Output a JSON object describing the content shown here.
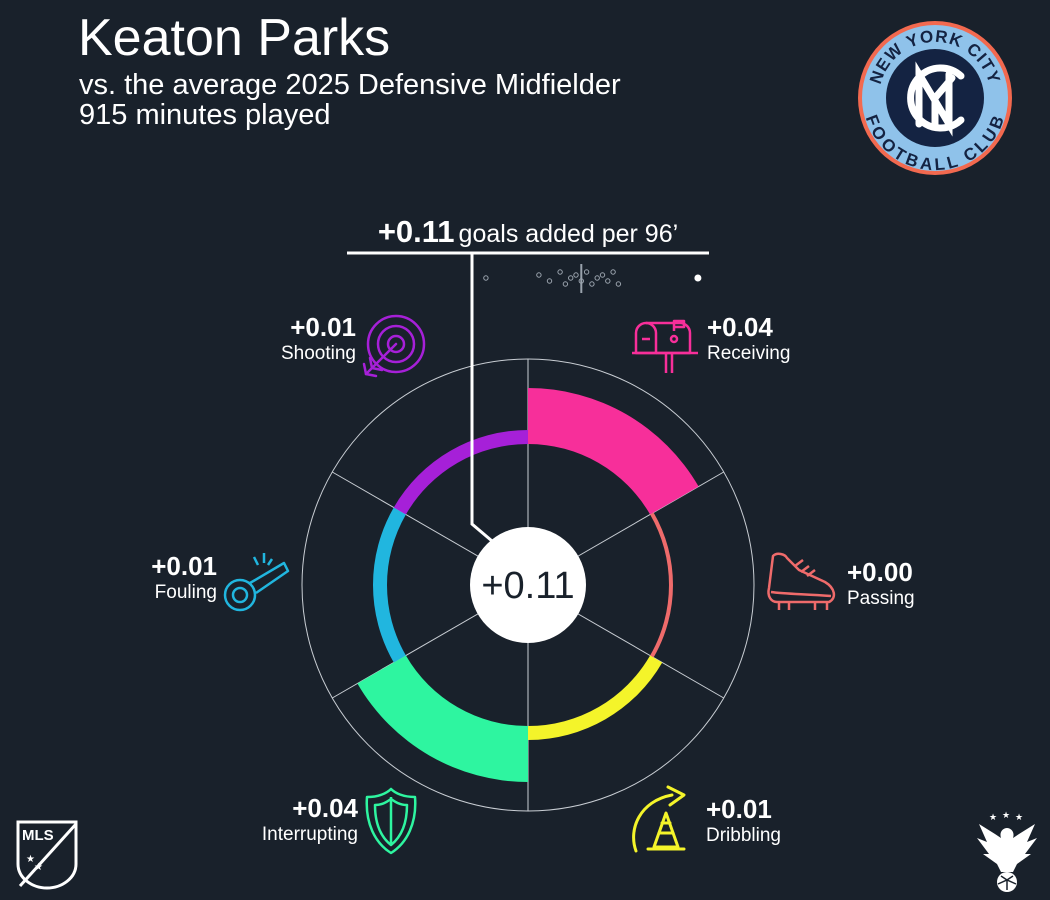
{
  "header": {
    "player_name": "Keaton Parks",
    "comparison": "vs. the average 2025 Defensive Midfielder",
    "minutes": "915 minutes played"
  },
  "club_badge": {
    "text_top": "NEW YORK CITY",
    "text_bottom": "FOOTBALL CLUB",
    "monogram": "NYC"
  },
  "summary": {
    "value": "+0.11",
    "label": "goals added per 96’",
    "center_value": "+0.11"
  },
  "distribution_dots": [
    0.03,
    0.13,
    0.15,
    0.17,
    0.18,
    0.19,
    0.2,
    0.21,
    0.22,
    0.23,
    0.24,
    0.25,
    0.26,
    0.27,
    0.28,
    0.43
  ],
  "categories": [
    {
      "key": "receiving",
      "label": "Receiving",
      "value": "+0.04",
      "color": "#f72f9a",
      "icon": "mailbox-icon"
    },
    {
      "key": "passing",
      "label": "Passing",
      "value": "+0.00",
      "color": "#ef6b6b",
      "icon": "cleat-icon"
    },
    {
      "key": "dribbling",
      "label": "Dribbling",
      "value": "+0.01",
      "color": "#f4f42a",
      "icon": "cone-icon"
    },
    {
      "key": "interrupting",
      "label": "Interrupting",
      "value": "+0.04",
      "color": "#2ef5a0",
      "icon": "shield-icon"
    },
    {
      "key": "fouling",
      "label": "Fouling",
      "value": "+0.01",
      "color": "#21b6df",
      "icon": "whistle-icon"
    },
    {
      "key": "shooting",
      "label": "Shooting",
      "value": "+0.01",
      "color": "#a620d8",
      "icon": "target-icon"
    }
  ],
  "chart_data": {
    "type": "radial-bar",
    "title": "Keaton Parks",
    "subtitle": "vs. the average 2025 Defensive Midfielder",
    "categories": [
      "Receiving",
      "Passing",
      "Dribbling",
      "Interrupting",
      "Fouling",
      "Shooting"
    ],
    "values": [
      0.04,
      0.0,
      0.01,
      0.04,
      0.01,
      0.01
    ],
    "total": 0.11,
    "unit": "goals added per 96’"
  },
  "logos": {
    "league": "MLS"
  }
}
